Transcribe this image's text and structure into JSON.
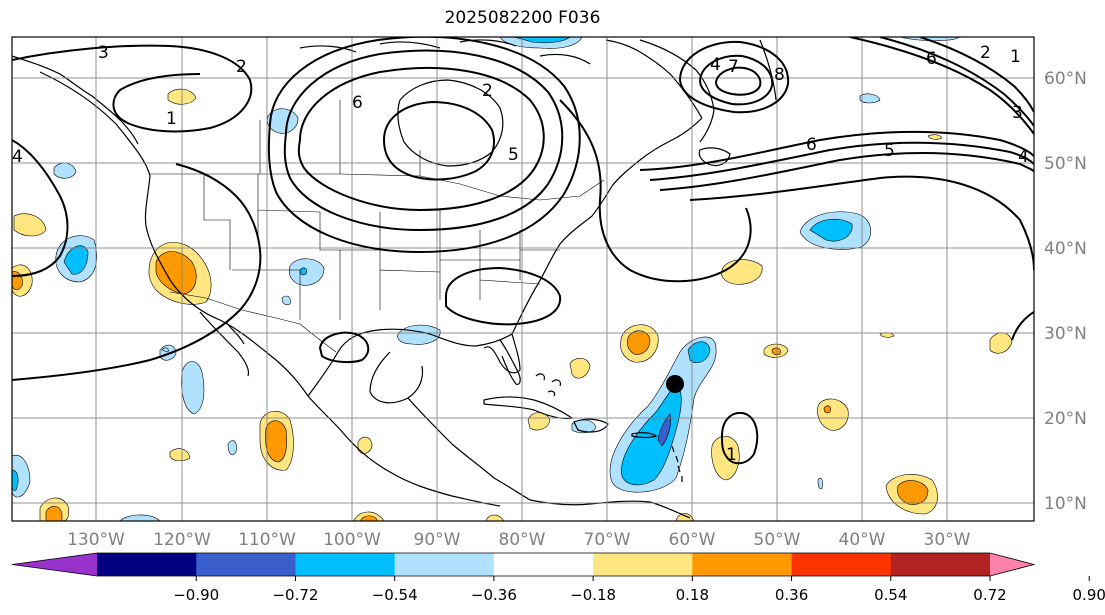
{
  "title": "2025082200 F036",
  "map": {
    "lon_labels": [
      "130°W",
      "120°W",
      "110°W",
      "100°W",
      "90°W",
      "80°W",
      "70°W",
      "60°W",
      "50°W",
      "40°W",
      "30°W"
    ],
    "lat_labels": [
      "60°N",
      "50°N",
      "40°N",
      "30°N",
      "20°N",
      "10°N"
    ],
    "contour_labels": [
      "3",
      "2",
      "1",
      "6",
      "2",
      "5",
      "4",
      "7",
      "8",
      "6",
      "5",
      "1",
      "3",
      "4",
      "6",
      "2",
      "4",
      "1"
    ],
    "marker": "storm-position-dot"
  },
  "colorbar": {
    "ticks": [
      "−0.90",
      "−0.72",
      "−0.54",
      "−0.36",
      "−0.18",
      "0.18",
      "0.36",
      "0.54",
      "0.72",
      "0.90"
    ],
    "colors": {
      "under": "#9932cc",
      "bins": [
        "#000080",
        "#3a5fcd",
        "#00bfff",
        "#b0e2ff",
        "#ffffff",
        "#ffe680",
        "#ff9900",
        "#ff3300",
        "#b22222"
      ],
      "over": "#ff82ab"
    }
  }
}
